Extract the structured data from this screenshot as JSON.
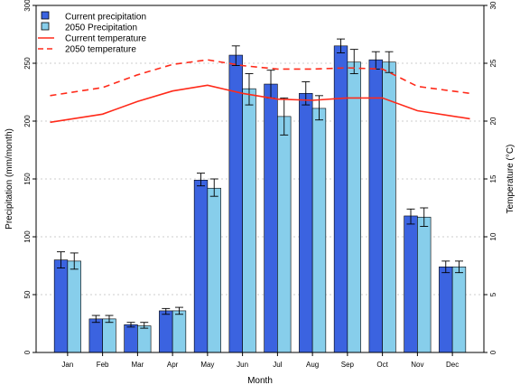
{
  "chart_data": {
    "type": "bar",
    "xlabel": "Month",
    "ylabel": "Precipitation (mm/month)",
    "y2label": "Temperature (°C)",
    "categories": [
      "Jan",
      "Feb",
      "Mar",
      "Apr",
      "May",
      "Jun",
      "Jul",
      "Aug",
      "Sep",
      "Oct",
      "Nov",
      "Dec"
    ],
    "ylim": [
      0,
      300
    ],
    "yticks": [
      0,
      50,
      100,
      150,
      200,
      250,
      300
    ],
    "y2lim": [
      0,
      30
    ],
    "y2ticks": [
      0,
      5,
      10,
      15,
      20,
      25,
      30
    ],
    "grid": "horizontal dotted",
    "legend_position": "top-left",
    "bar_series": [
      {
        "name": "Current precipitation",
        "color": "#3b63e0",
        "values": [
          80,
          29,
          24,
          36,
          149,
          257,
          232,
          224,
          265,
          253,
          118,
          74
        ],
        "error_low": [
          73,
          26,
          22,
          33,
          144,
          248,
          220,
          214,
          259,
          245,
          111,
          69
        ],
        "error_high": [
          87,
          32,
          26,
          38,
          155,
          265,
          244,
          234,
          271,
          260,
          124,
          79
        ]
      },
      {
        "name": "2050 Precipitation",
        "color": "#87ceeb",
        "values": [
          79,
          29,
          23,
          36,
          142,
          228,
          204,
          211,
          251,
          251,
          117,
          74
        ],
        "error_low": [
          72,
          26,
          21,
          33,
          135,
          214,
          188,
          201,
          241,
          242,
          109,
          69
        ],
        "error_high": [
          86,
          32,
          26,
          39,
          150,
          241,
          220,
          222,
          262,
          260,
          125,
          79
        ]
      }
    ],
    "line_series": [
      {
        "name": "Current temperature",
        "color": "#ff2a1a",
        "style": "solid",
        "axis": "right",
        "x": [
          0.5,
          2,
          3,
          4,
          5,
          6,
          7,
          8,
          9,
          10,
          11,
          12.5
        ],
        "values": [
          19.9,
          20.6,
          21.7,
          22.6,
          23.1,
          22.4,
          21.9,
          21.8,
          22.0,
          22.0,
          20.9,
          20.2
        ]
      },
      {
        "name": "2050 temperature",
        "color": "#ff2a1a",
        "style": "dashed",
        "axis": "right",
        "x": [
          0.5,
          2,
          3,
          4,
          5,
          6,
          7,
          8,
          9,
          10,
          11,
          12.5
        ],
        "values": [
          22.2,
          22.9,
          24.0,
          24.9,
          25.3,
          24.8,
          24.5,
          24.5,
          24.6,
          24.5,
          23.0,
          22.4
        ]
      }
    ]
  }
}
